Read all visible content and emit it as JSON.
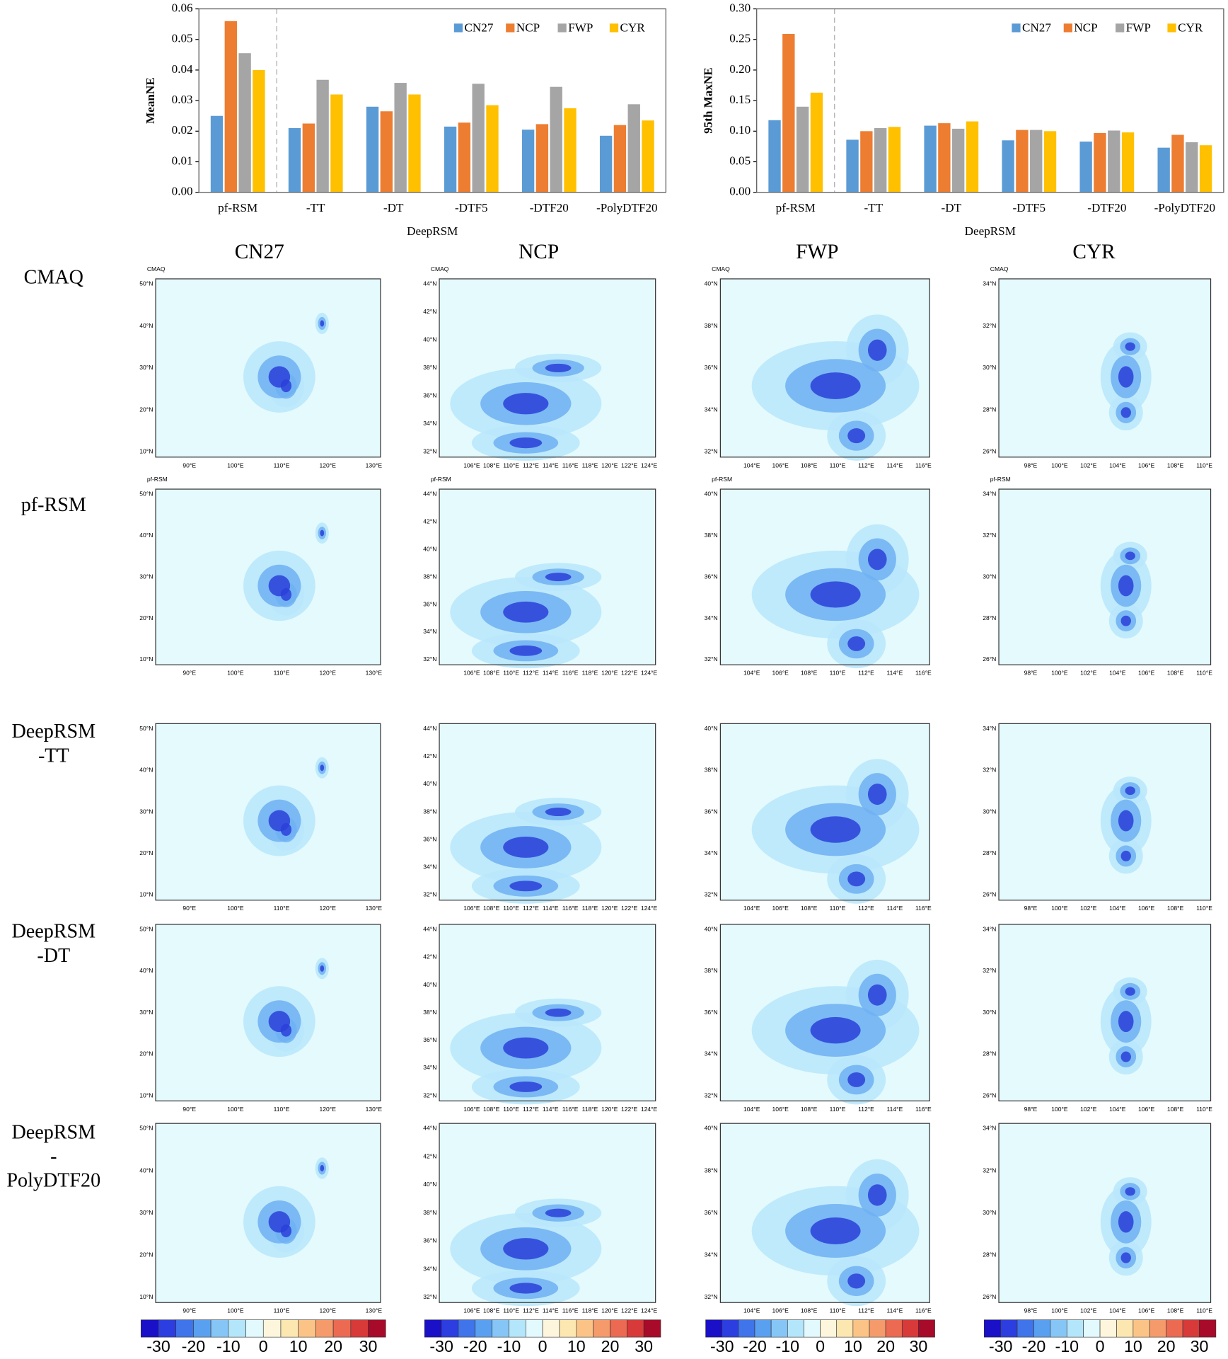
{
  "chart_data": [
    {
      "type": "bar",
      "ylabel": "MeanNE",
      "xlabel": "DeepRSM",
      "categories": [
        "pf-RSM",
        "-TT",
        "-DT",
        "-DTF5",
        "-DTF20",
        "-PolyDTF20"
      ],
      "series": [
        {
          "name": "CN27",
          "color": "#5b9bd5",
          "values": [
            0.025,
            0.021,
            0.028,
            0.0215,
            0.0205,
            0.0185
          ]
        },
        {
          "name": "NCP",
          "color": "#ed7d31",
          "values": [
            0.056,
            0.0225,
            0.0265,
            0.0228,
            0.0223,
            0.022
          ]
        },
        {
          "name": "FWP",
          "color": "#a5a5a5",
          "values": [
            0.0455,
            0.0368,
            0.0358,
            0.0355,
            0.0345,
            0.0288
          ]
        },
        {
          "name": "CYR",
          "color": "#ffc000",
          "values": [
            0.04,
            0.032,
            0.032,
            0.0285,
            0.0275,
            0.0235
          ]
        }
      ],
      "ylim": [
        0,
        0.06
      ],
      "yticks": [
        {
          "value": 0,
          "label": "0.00"
        },
        0.01,
        0.02,
        0.03,
        0.04,
        0.05,
        0.06
      ],
      "legend": "top-right"
    },
    {
      "type": "bar",
      "ylabel": "95th MaxNE",
      "xlabel": "DeepRSM",
      "categories": [
        "pf-RSM",
        "-TT",
        "-DT",
        "-DTF5",
        "-DTF20",
        "-PolyDTF20"
      ],
      "series": [
        {
          "name": "CN27",
          "color": "#5b9bd5",
          "values": [
            0.118,
            0.086,
            0.109,
            0.085,
            0.083,
            0.073
          ]
        },
        {
          "name": "NCP",
          "color": "#ed7d31",
          "values": [
            0.259,
            0.1,
            0.113,
            0.102,
            0.097,
            0.094
          ]
        },
        {
          "name": "FWP",
          "color": "#a5a5a5",
          "values": [
            0.14,
            0.105,
            0.104,
            0.102,
            0.101,
            0.082
          ]
        },
        {
          "name": "CYR",
          "color": "#ffc000",
          "values": [
            0.163,
            0.107,
            0.116,
            0.1,
            0.098,
            0.077
          ]
        }
      ],
      "ylim": [
        0,
        0.3
      ],
      "yticks": [
        {
          "value": 0,
          "label": "0.00"
        },
        0.05,
        {
          "value": 0.1,
          "label": "0.10"
        },
        0.15,
        {
          "value": 0.2,
          "label": "0.20"
        },
        0.25,
        {
          "value": 0.3,
          "label": "0.30"
        }
      ],
      "legend": "top-right"
    }
  ],
  "maps": {
    "columns": [
      "CN27",
      "NCP",
      "FWP",
      "CYR"
    ],
    "rows": [
      {
        "lines": [
          "CMAQ"
        ],
        "panel_label": "CMAQ"
      },
      {
        "lines": [
          "pf-RSM"
        ],
        "panel_label": "pf-RSM"
      },
      {
        "lines": [
          "DeepRSM",
          "-TT"
        ]
      },
      {
        "lines": [
          "DeepRSM",
          "-DT"
        ]
      },
      {
        "lines": [
          "DeepRSM",
          "-",
          "PolyDTF20"
        ]
      }
    ],
    "regions": [
      {
        "lat_labels": [
          "10°N",
          "20°N",
          "30°N",
          "40°N",
          "50°N"
        ],
        "lon_labels": [
          "90°E",
          "100°E",
          "110°E",
          "120°E",
          "130°E"
        ]
      },
      {
        "lat_labels": [
          "32°N",
          "34°N",
          "36°N",
          "38°N",
          "40°N",
          "42°N",
          "44°N"
        ],
        "lon_labels": [
          "106°E",
          "108°E",
          "110°E",
          "112°E",
          "114°E",
          "116°E",
          "118°E",
          "120°E",
          "122°E",
          "124°E"
        ]
      },
      {
        "lat_labels": [
          "32°N",
          "34°N",
          "36°N",
          "38°N",
          "40°N"
        ],
        "lon_labels": [
          "104°E",
          "106°E",
          "108°E",
          "110°E",
          "112°E",
          "114°E",
          "116°E"
        ]
      },
      {
        "lat_labels": [
          "26°N",
          "28°N",
          "30°N",
          "32°N",
          "34°N"
        ],
        "lon_labels": [
          "98°E",
          "100°E",
          "102°E",
          "104°E",
          "106°E",
          "108°E",
          "110°E"
        ]
      }
    ],
    "colorbar": {
      "labels": [
        "-30",
        "-20",
        "-10",
        "0",
        "10",
        "20",
        "30"
      ],
      "colors": [
        "#1a10c8",
        "#2c3ee0",
        "#3f74ea",
        "#5aa0f0",
        "#86c6f6",
        "#b4e6fb",
        "#e2f9fd",
        "#fdf6dc",
        "#fde7b0",
        "#fbc486",
        "#f59a6a",
        "#ec6a52",
        "#d83a3a",
        "#a80a2a"
      ]
    }
  }
}
